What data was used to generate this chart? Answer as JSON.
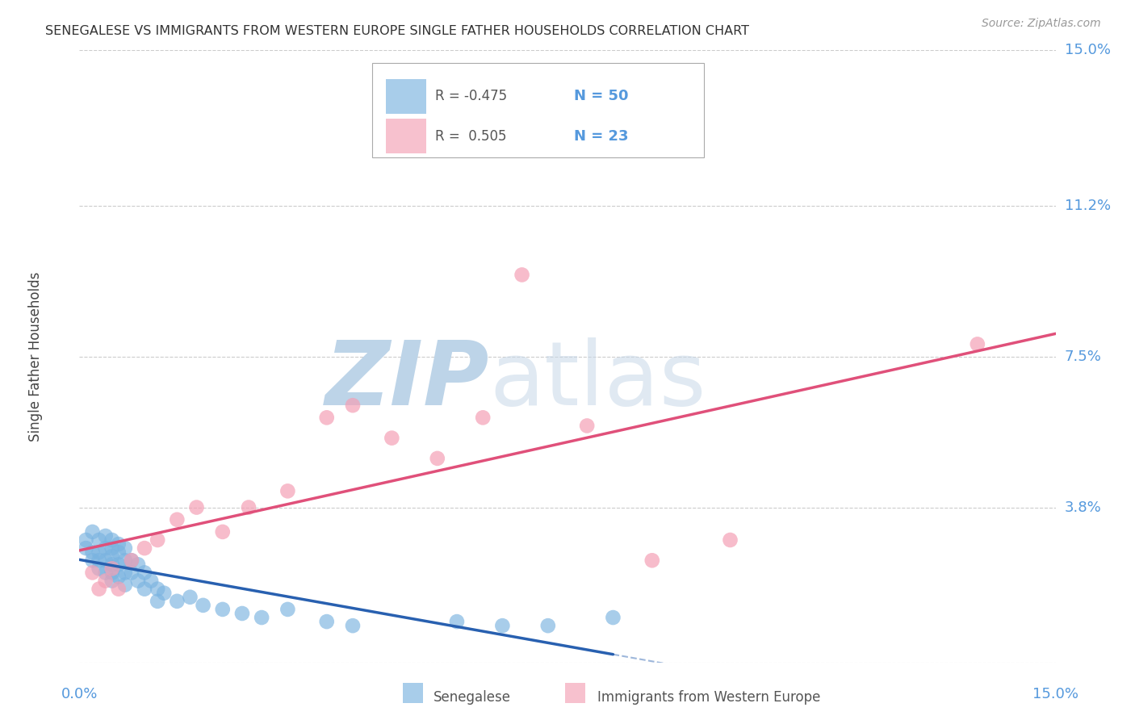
{
  "title": "SENEGALESE VS IMMIGRANTS FROM WESTERN EUROPE SINGLE FATHER HOUSEHOLDS CORRELATION CHART",
  "source": "Source: ZipAtlas.com",
  "ylabel": "Single Father Households",
  "xlim": [
    0.0,
    0.15
  ],
  "ylim": [
    0.0,
    0.15
  ],
  "ytick_vals": [
    0.0,
    0.038,
    0.075,
    0.112,
    0.15
  ],
  "ytick_labels": [
    "",
    "3.8%",
    "7.5%",
    "11.2%",
    "15.0%"
  ],
  "senegalese_color": "#7ab3e0",
  "western_europe_color": "#f4a0b5",
  "senegalese_line_color": "#2860b0",
  "western_europe_line_color": "#e0507a",
  "legend_R_senegalese": "-0.475",
  "legend_N_senegalese": "50",
  "legend_R_western": "0.505",
  "legend_N_western": "23",
  "background_color": "#ffffff",
  "grid_color": "#cccccc",
  "title_color": "#333333",
  "axis_label_color": "#444444",
  "tick_label_color": "#5599dd",
  "senegalese_x": [
    0.001,
    0.001,
    0.002,
    0.002,
    0.002,
    0.003,
    0.003,
    0.003,
    0.003,
    0.004,
    0.004,
    0.004,
    0.004,
    0.005,
    0.005,
    0.005,
    0.005,
    0.005,
    0.005,
    0.006,
    0.006,
    0.006,
    0.006,
    0.007,
    0.007,
    0.007,
    0.007,
    0.008,
    0.008,
    0.009,
    0.009,
    0.01,
    0.01,
    0.011,
    0.012,
    0.012,
    0.013,
    0.015,
    0.017,
    0.019,
    0.022,
    0.025,
    0.028,
    0.032,
    0.038,
    0.042,
    0.058,
    0.065,
    0.072,
    0.082
  ],
  "senegalese_y": [
    0.03,
    0.028,
    0.032,
    0.027,
    0.025,
    0.03,
    0.027,
    0.025,
    0.023,
    0.031,
    0.028,
    0.025,
    0.022,
    0.03,
    0.028,
    0.026,
    0.024,
    0.022,
    0.02,
    0.029,
    0.027,
    0.024,
    0.021,
    0.028,
    0.025,
    0.022,
    0.019,
    0.025,
    0.022,
    0.024,
    0.02,
    0.022,
    0.018,
    0.02,
    0.018,
    0.015,
    0.017,
    0.015,
    0.016,
    0.014,
    0.013,
    0.012,
    0.011,
    0.013,
    0.01,
    0.009,
    0.01,
    0.009,
    0.009,
    0.011
  ],
  "western_x": [
    0.002,
    0.003,
    0.004,
    0.005,
    0.006,
    0.008,
    0.01,
    0.012,
    0.015,
    0.018,
    0.022,
    0.026,
    0.032,
    0.038,
    0.042,
    0.048,
    0.055,
    0.062,
    0.068,
    0.078,
    0.088,
    0.1,
    0.138
  ],
  "western_y": [
    0.022,
    0.018,
    0.02,
    0.023,
    0.018,
    0.025,
    0.028,
    0.03,
    0.035,
    0.038,
    0.032,
    0.038,
    0.042,
    0.06,
    0.063,
    0.055,
    0.05,
    0.06,
    0.095,
    0.058,
    0.025,
    0.03,
    0.078
  ]
}
